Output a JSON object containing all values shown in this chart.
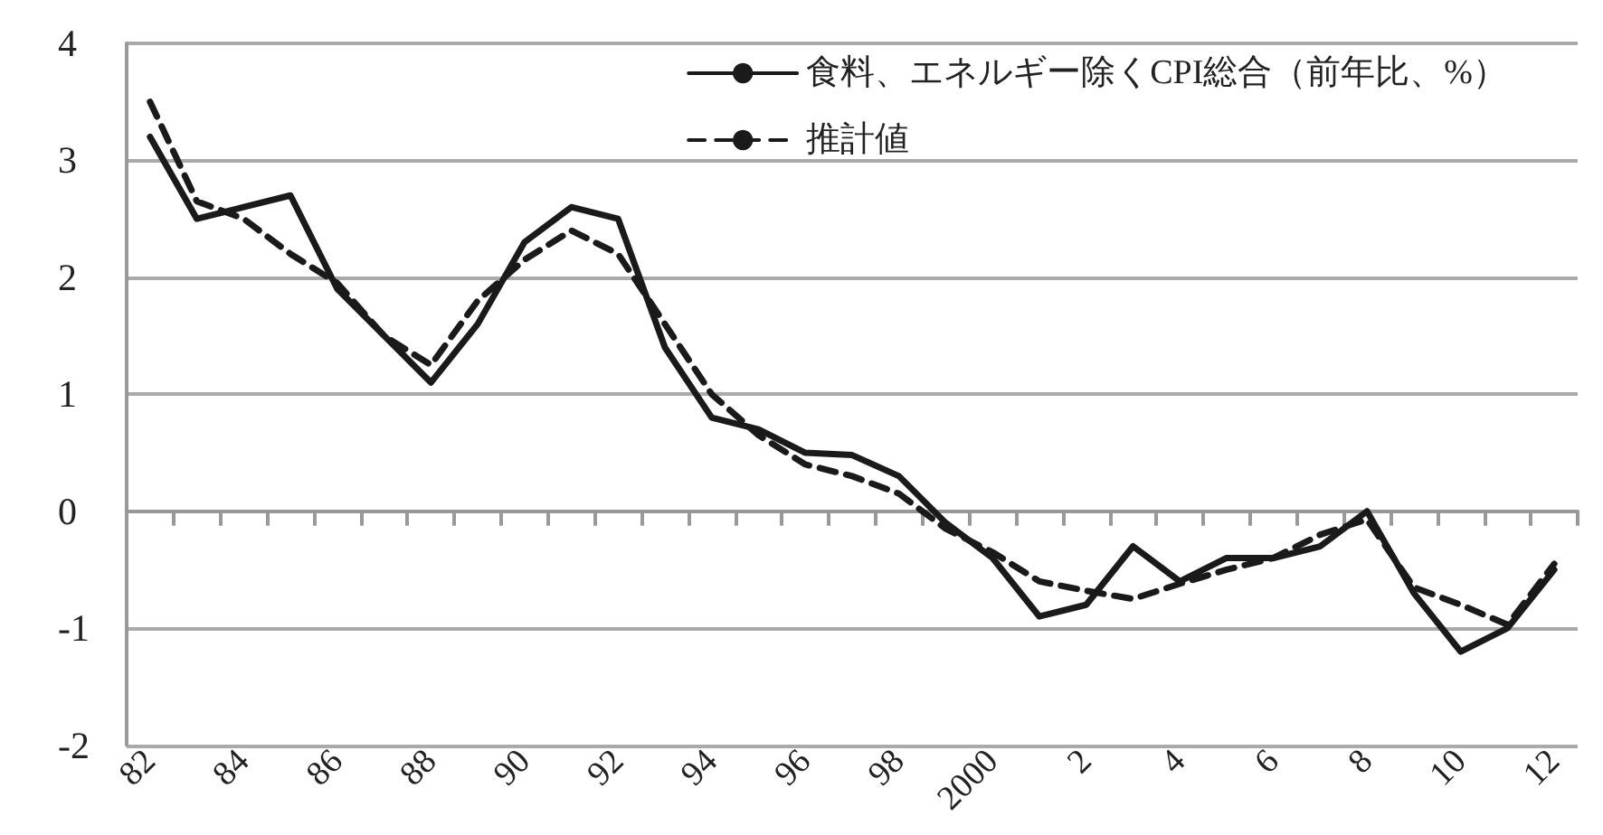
{
  "chart_data": {
    "type": "line",
    "categories": [
      "82",
      null,
      "84",
      null,
      "86",
      null,
      "88",
      null,
      "90",
      null,
      "92",
      null,
      "94",
      null,
      "96",
      null,
      "98",
      null,
      "2000",
      null,
      "2",
      null,
      "4",
      null,
      "6",
      null,
      "8",
      null,
      "10",
      null,
      "12"
    ],
    "series": [
      {
        "name": "食料、エネルギー除くCPI総合（前年比、%）",
        "color": "#1a1a1a",
        "line_style": "solid",
        "values": [
          3.2,
          2.5,
          2.6,
          2.7,
          1.9,
          1.5,
          1.1,
          1.6,
          2.3,
          2.6,
          2.5,
          1.4,
          0.8,
          0.7,
          0.5,
          0.48,
          0.3,
          -0.1,
          -0.4,
          -0.9,
          -0.8,
          -0.3,
          -0.6,
          -0.4,
          -0.4,
          -0.3,
          0.0,
          -0.7,
          -1.2,
          -1.0,
          -0.5
        ]
      },
      {
        "name": "推計値",
        "color": "#1a1a1a",
        "line_style": "dashed",
        "values": [
          3.5,
          2.65,
          2.5,
          2.2,
          1.95,
          1.5,
          1.25,
          1.8,
          2.15,
          2.4,
          2.2,
          1.6,
          1.0,
          0.65,
          0.4,
          0.3,
          0.15,
          -0.15,
          -0.35,
          -0.6,
          -0.68,
          -0.75,
          -0.62,
          -0.5,
          -0.4,
          -0.2,
          -0.07,
          -0.65,
          -0.8,
          -0.97,
          -0.45
        ]
      }
    ],
    "ylim": [
      -2,
      4
    ],
    "yticks": [
      -2,
      -1,
      0,
      1,
      2,
      3,
      4
    ],
    "grid": "y",
    "legend": "top right",
    "marker": "none"
  }
}
